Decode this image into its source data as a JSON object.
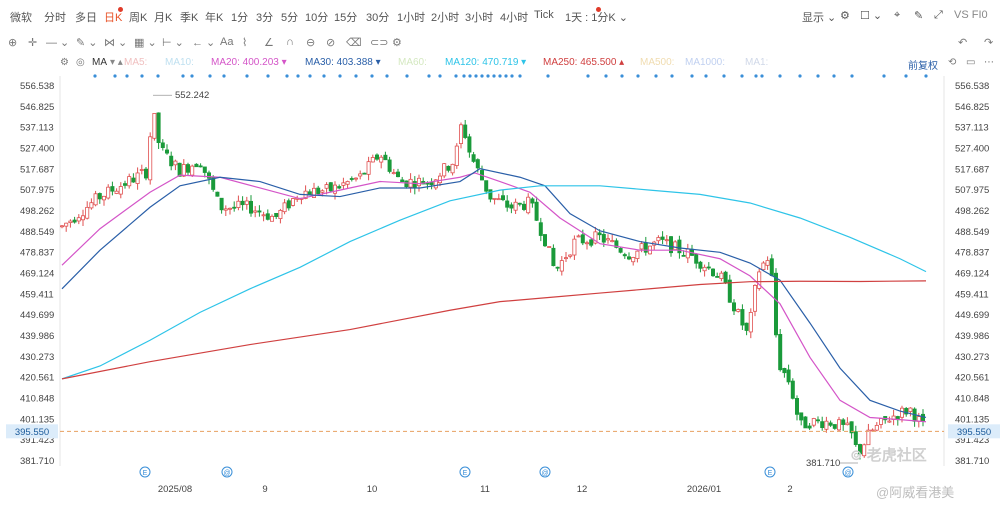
{
  "toolbar": {
    "items": [
      "微软",
      "分时",
      "多日",
      "日K",
      "周K",
      "月K",
      "季K",
      "年K",
      "1分",
      "3分",
      "5分",
      "10分",
      "15分",
      "30分",
      "1小时",
      "2小时",
      "3小时",
      "4小时",
      "Tick",
      "1天 : 1分K"
    ],
    "active_index": 3,
    "right": {
      "display": "显示",
      "symbol": "VS FI0"
    }
  },
  "ma_bar": {
    "label": "MA",
    "items": [
      {
        "text": "MA5:",
        "color": "#f0c0c0"
      },
      {
        "text": "MA10:",
        "color": "#bfe0f0"
      },
      {
        "text": "MA20: 400.203",
        "color": "#d455c8"
      },
      {
        "text": "MA30: 403.388",
        "color": "#2a5fa8"
      },
      {
        "text": "MA60:",
        "color": "#d4e8c0"
      },
      {
        "text": "MA120: 470.719",
        "color": "#2ec4e8"
      },
      {
        "text": "MA250: 465.500",
        "color": "#d04040"
      },
      {
        "text": "MA500:",
        "color": "#f0dcb0"
      },
      {
        "text": "MA1000:",
        "color": "#c0d0f0"
      },
      {
        "text": "MA1:",
        "color": "#d0d8e8"
      }
    ],
    "adjust": "前复权"
  },
  "chart_data": {
    "type": "candlestick",
    "y_ticks": [
      "556.538",
      "546.825",
      "537.113",
      "527.400",
      "517.687",
      "507.975",
      "498.262",
      "488.549",
      "478.837",
      "469.124",
      "459.411",
      "449.699",
      "439.986",
      "430.273",
      "420.561",
      "410.848",
      "401.135",
      "391.423",
      "381.710"
    ],
    "ylim": [
      381.71,
      556.538
    ],
    "x_labels": [
      "2025/08",
      "9",
      "10",
      "11",
      "12",
      "2026/01",
      "2"
    ],
    "current_price": "395.550",
    "high_annotation": "552.242",
    "low_annotation": "381.710",
    "ma20_line": [
      400.2
    ],
    "ma30_line": [
      403.4
    ],
    "ma120_line": [
      470.7
    ],
    "ma250_line": [
      465.5
    ]
  },
  "watermark": {
    "brand": "老虎社区",
    "author": "@阿威看港美"
  }
}
